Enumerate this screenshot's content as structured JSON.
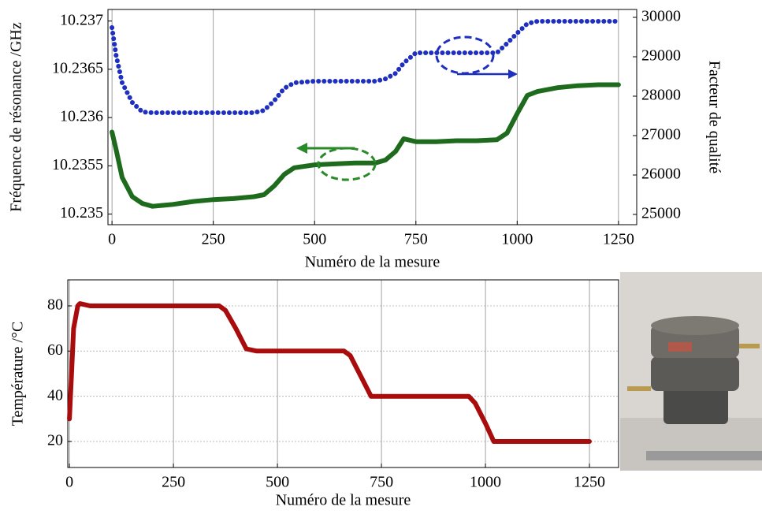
{
  "chart_data": [
    {
      "type": "scatter",
      "xlabel": "Numéro de la mesure",
      "ylabel": "Fréquence de résonance /GHz",
      "y2label": "Facteur de qualité",
      "x": [
        0,
        10,
        25,
        50,
        75,
        100,
        125,
        150,
        200,
        250,
        300,
        350,
        375,
        400,
        425,
        450,
        500,
        550,
        600,
        650,
        675,
        700,
        720,
        750,
        800,
        850,
        900,
        950,
        975,
        1000,
        1025,
        1050,
        1100,
        1150,
        1200,
        1250
      ],
      "series": [
        {
          "color": "#1e6b1e",
          "values": [
            10.23585,
            10.23567,
            10.23538,
            10.23518,
            10.23511,
            10.23508,
            10.23509,
            10.2351,
            10.23513,
            10.23515,
            10.23516,
            10.23518,
            10.2352,
            10.23529,
            10.23541,
            10.23548,
            10.23551,
            10.23552,
            10.23553,
            10.23553,
            10.23556,
            10.23565,
            10.23578,
            10.23575,
            10.23575,
            10.23576,
            10.23576,
            10.23577,
            10.23584,
            10.23604,
            10.23623,
            10.23627,
            10.23631,
            10.23633,
            10.23634,
            10.23634
          ]
        },
        {
          "color": "#1f2fbf",
          "axis": "y2",
          "values": [
            29740,
            29040,
            28340,
            27840,
            27600,
            27580,
            27580,
            27580,
            27580,
            27580,
            27580,
            27580,
            27640,
            27880,
            28200,
            28340,
            28380,
            28380,
            28380,
            28380,
            28440,
            28580,
            28840,
            29100,
            29100,
            29100,
            29100,
            29100,
            29340,
            29600,
            29840,
            29900,
            29900,
            29900,
            29900,
            29900
          ]
        }
      ],
      "xlim": [
        -10,
        1295
      ],
      "xticks": [
        0,
        250,
        500,
        750,
        1000,
        1250
      ],
      "ylim": [
        10.23489,
        10.23712
      ],
      "yticks": [
        10.235,
        10.2355,
        10.236,
        10.2365,
        10.237
      ],
      "y2lim": [
        24740,
        30200
      ],
      "y2ticks": [
        25000,
        26000,
        27000,
        28000,
        29000,
        30000
      ],
      "grid": "x"
    },
    {
      "type": "scatter",
      "xlabel": "Numéro de la mesure",
      "ylabel": "Température /°C",
      "x": [
        0,
        5,
        10,
        20,
        25,
        50,
        100,
        200,
        300,
        360,
        375,
        400,
        425,
        450,
        500,
        600,
        660,
        675,
        700,
        725,
        750,
        800,
        900,
        960,
        975,
        1000,
        1020,
        1050,
        1100,
        1200,
        1250
      ],
      "series": [
        {
          "color": "#a80c0c",
          "values": [
            30,
            50,
            70,
            80,
            81,
            80,
            80,
            80,
            80,
            80,
            78,
            70,
            61,
            60,
            60,
            60,
            60,
            58,
            49,
            40,
            40,
            40,
            40,
            40,
            37,
            28,
            20,
            20,
            20,
            20,
            20
          ]
        }
      ],
      "xlim": [
        -4,
        1320
      ],
      "xticks": [
        0,
        250,
        500,
        750,
        1000,
        1250
      ],
      "ylim": [
        8.5,
        91.5
      ],
      "yticks": [
        20,
        40,
        60,
        80
      ],
      "grid": "both"
    }
  ]
}
